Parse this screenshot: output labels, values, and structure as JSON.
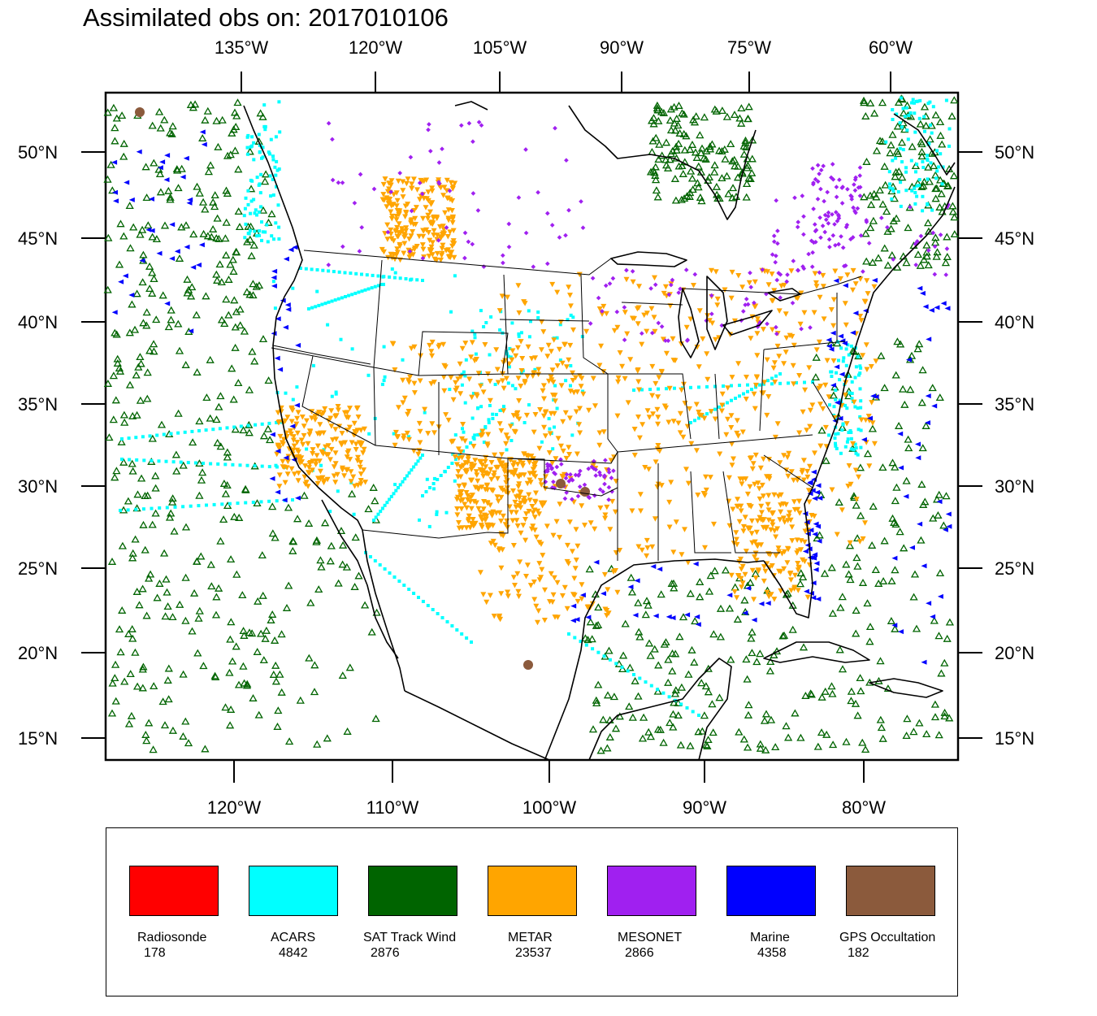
{
  "title": "Assimilated obs on: 2017010106",
  "map": {
    "top_axis_labels": [
      "135°W",
      "120°W",
      "105°W",
      "90°W",
      "75°W",
      "60°W"
    ],
    "bottom_axis_labels": [
      "120°W",
      "110°W",
      "100°W",
      "90°W",
      "80°W"
    ],
    "lat_labels": [
      "50°N",
      "45°N",
      "40°N",
      "35°N",
      "30°N",
      "25°N",
      "20°N",
      "15°N"
    ]
  },
  "legend": [
    {
      "name": "Radiosonde",
      "count": "178",
      "color": "#ff0000"
    },
    {
      "name": "ACARS",
      "count": "4842",
      "color": "#00ffff"
    },
    {
      "name": "SAT Track Wind",
      "count": "2876",
      "color": "#006400"
    },
    {
      "name": "METAR",
      "count": "23537",
      "color": "#ffa500"
    },
    {
      "name": "MESONET",
      "count": "2866",
      "color": "#a020f0"
    },
    {
      "name": "Marine",
      "count": "4358",
      "color": "#0000ff"
    },
    {
      "name": "GPS Occultation",
      "count": "182",
      "color": "#8b5a3c"
    }
  ]
}
